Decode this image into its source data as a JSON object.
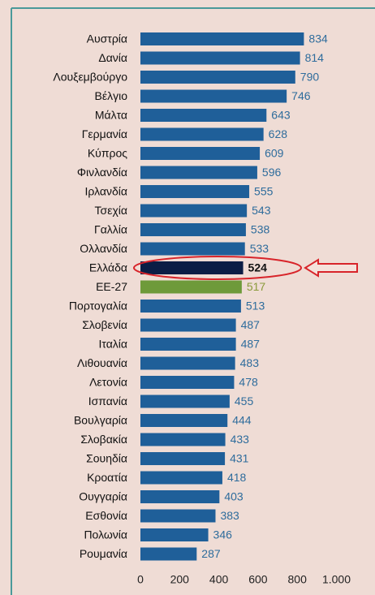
{
  "chart_data": {
    "type": "barh",
    "categories": [
      "Αυστρία",
      "Δανία",
      "Λουξεμβούργο",
      "Βέλγιο",
      "Μάλτα",
      "Γερμανία",
      "Κύπρος",
      "Φινλανδία",
      "Ιρλανδία",
      "Τσεχία",
      "Γαλλία",
      "Ολλανδία",
      "Ελλάδα",
      "ΕΕ-27",
      "Πορτογαλία",
      "Σλοβενία",
      "Ιταλία",
      "Λιθουανία",
      "Λετονία",
      "Ισπανία",
      "Βουλγαρία",
      "Σλοβακία",
      "Σουηδία",
      "Κροατία",
      "Ουγγαρία",
      "Εσθονία",
      "Πολωνία",
      "Ρουμανία"
    ],
    "values": [
      834,
      814,
      790,
      746,
      643,
      628,
      609,
      596,
      555,
      543,
      538,
      533,
      524,
      517,
      513,
      487,
      487,
      483,
      478,
      455,
      444,
      433,
      431,
      418,
      403,
      383,
      346,
      287
    ],
    "colors": [
      "#1f5f99",
      "#1f5f99",
      "#1f5f99",
      "#1f5f99",
      "#1f5f99",
      "#1f5f99",
      "#1f5f99",
      "#1f5f99",
      "#1f5f99",
      "#1f5f99",
      "#1f5f99",
      "#1f5f99",
      "#0b1d45",
      "#6e9a3a",
      "#1f5f99",
      "#1f5f99",
      "#1f5f99",
      "#1f5f99",
      "#1f5f99",
      "#1f5f99",
      "#1f5f99",
      "#1f5f99",
      "#1f5f99",
      "#1f5f99",
      "#1f5f99",
      "#1f5f99",
      "#1f5f99",
      "#1f5f99"
    ],
    "label_colors": [
      "#2e6c9c",
      "#2e6c9c",
      "#2e6c9c",
      "#2e6c9c",
      "#2e6c9c",
      "#2e6c9c",
      "#2e6c9c",
      "#2e6c9c",
      "#2e6c9c",
      "#2e6c9c",
      "#2e6c9c",
      "#2e6c9c",
      "#111111",
      "#8a9a3a",
      "#2e6c9c",
      "#2e6c9c",
      "#2e6c9c",
      "#2e6c9c",
      "#2e6c9c",
      "#2e6c9c",
      "#2e6c9c",
      "#2e6c9c",
      "#2e6c9c",
      "#2e6c9c",
      "#2e6c9c",
      "#2e6c9c",
      "#2e6c9c",
      "#2e6c9c"
    ],
    "xlim": [
      0,
      1000
    ],
    "xticks": [
      0,
      200,
      400,
      600,
      800,
      {
        "value": 1000,
        "label": "1.000"
      }
    ]
  }
}
